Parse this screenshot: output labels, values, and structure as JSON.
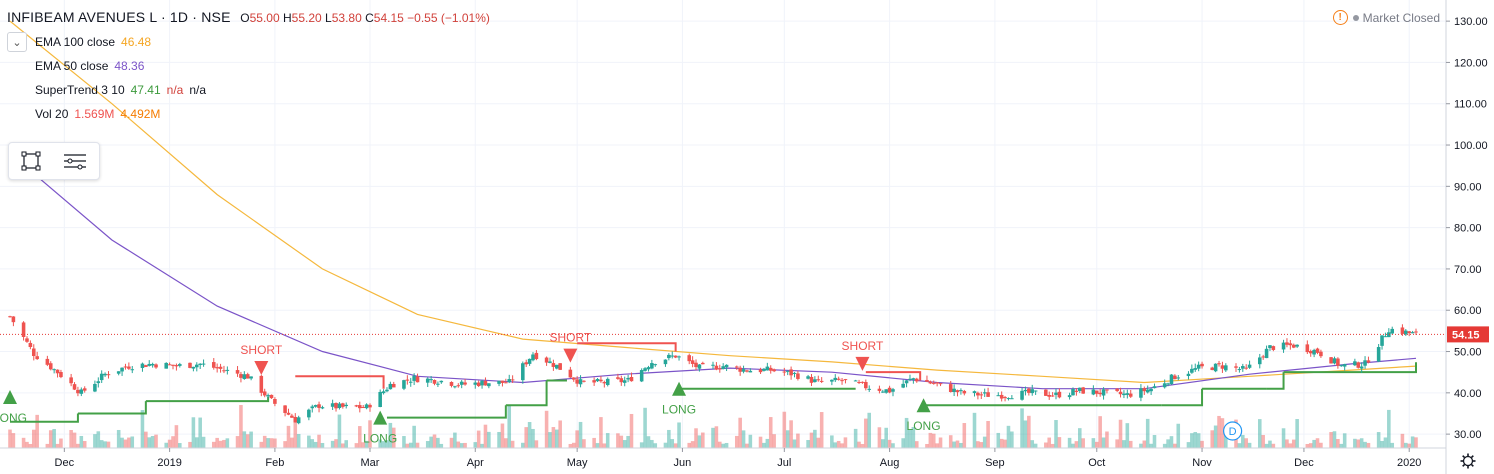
{
  "header": {
    "symbol": "INFIBEAM AVENUES L · 1D · NSE",
    "open_label": "O",
    "open": "55.00",
    "high_label": "H",
    "high": "55.20",
    "low_label": "L",
    "low": "53.80",
    "close_label": "C",
    "close": "54.15",
    "change": "−0.55 (−1.01%)"
  },
  "status": {
    "market": "Market Closed",
    "warning_icon": "warning-icon",
    "status_dot": "dot-icon"
  },
  "legend": {
    "collapse_icon": "chevron-down-icon",
    "items": [
      {
        "label": "EMA 100 close",
        "values": [
          "46.48"
        ],
        "color": "#f5b83d"
      },
      {
        "label": "EMA 50 close",
        "values": [
          "48.36"
        ],
        "color": "#7b54c8"
      },
      {
        "label": "SuperTrend 3 10",
        "values": [
          "47.41",
          "n/a"
        ],
        "extra": "n/a",
        "color": "#3c9a3c"
      },
      {
        "label": "Vol 20",
        "values": [
          "1.569M",
          "4.492M"
        ],
        "color": "#ef5350"
      }
    ]
  },
  "toolbox": {
    "rect_tool": "rectangle-tool-icon",
    "list_tool": "lines-menu-icon"
  },
  "settings_icon": "gear-icon",
  "colors": {
    "up": "#26a69a",
    "down": "#ef5350",
    "ema100": "#f5b83d",
    "ema50": "#7b54c8",
    "supertrend_up": "#43a047",
    "supertrend_down": "#ef5350",
    "price_line": "#e53935"
  },
  "chart_data": {
    "type": "candlestick",
    "title": "INFIBEAM AVENUES L · 1D · NSE",
    "y_ticks": [
      "130.00",
      "120.00",
      "110.00",
      "100.00",
      "90.00",
      "80.00",
      "70.00",
      "60.00",
      "50.00",
      "40.00",
      "30.00"
    ],
    "ylim": [
      25.5,
      134.5
    ],
    "x_ticks": [
      "Dec",
      "2019",
      "Feb",
      "Mar",
      "Apr",
      "May",
      "Jun",
      "Jul",
      "Aug",
      "Sep",
      "Oct",
      "Nov",
      "Dec",
      "2020"
    ],
    "xlim": [
      "2018-11-15",
      "2020-01-03"
    ],
    "last_price": "54.15",
    "closes": [
      {
        "date": "2018-11-15",
        "close": 58.5
      },
      {
        "date": "2018-11-22",
        "close": 49.5
      },
      {
        "date": "2018-11-29",
        "close": 45.0
      },
      {
        "date": "2018-12-06",
        "close": 40.0
      },
      {
        "date": "2018-12-13",
        "close": 44.5
      },
      {
        "date": "2018-12-20",
        "close": 46.5
      },
      {
        "date": "2018-12-27",
        "close": 47.0
      },
      {
        "date": "2019-01-03",
        "close": 46.5
      },
      {
        "date": "2019-01-10",
        "close": 47.0
      },
      {
        "date": "2019-01-17",
        "close": 45.5
      },
      {
        "date": "2019-01-24",
        "close": 44.0
      },
      {
        "date": "2019-01-31",
        "close": 38.0
      },
      {
        "date": "2019-02-07",
        "close": 33.5
      },
      {
        "date": "2019-02-14",
        "close": 37.0
      },
      {
        "date": "2019-02-21",
        "close": 36.5
      },
      {
        "date": "2019-02-28",
        "close": 36.5
      },
      {
        "date": "2019-03-07",
        "close": 42.0
      },
      {
        "date": "2019-03-14",
        "close": 43.5
      },
      {
        "date": "2019-03-21",
        "close": 43.0
      },
      {
        "date": "2019-03-28",
        "close": 42.0
      },
      {
        "date": "2019-04-04",
        "close": 42.5
      },
      {
        "date": "2019-04-11",
        "close": 42.5
      },
      {
        "date": "2019-04-18",
        "close": 49.5
      },
      {
        "date": "2019-04-25",
        "close": 46.5
      },
      {
        "date": "2019-05-02",
        "close": 42.5
      },
      {
        "date": "2019-05-09",
        "close": 42.5
      },
      {
        "date": "2019-05-16",
        "close": 43.0
      },
      {
        "date": "2019-05-23",
        "close": 47.5
      },
      {
        "date": "2019-05-30",
        "close": 49.0
      },
      {
        "date": "2019-06-06",
        "close": 46.0
      },
      {
        "date": "2019-06-13",
        "close": 46.5
      },
      {
        "date": "2019-06-20",
        "close": 45.5
      },
      {
        "date": "2019-06-27",
        "close": 45.5
      },
      {
        "date": "2019-07-04",
        "close": 44.5
      },
      {
        "date": "2019-07-11",
        "close": 42.5
      },
      {
        "date": "2019-07-18",
        "close": 43.0
      },
      {
        "date": "2019-07-25",
        "close": 41.5
      },
      {
        "date": "2019-08-01",
        "close": 40.5
      },
      {
        "date": "2019-08-08",
        "close": 43.5
      },
      {
        "date": "2019-08-15",
        "close": 42.0
      },
      {
        "date": "2019-08-22",
        "close": 40.0
      },
      {
        "date": "2019-08-29",
        "close": 39.5
      },
      {
        "date": "2019-09-05",
        "close": 39.5
      },
      {
        "date": "2019-09-12",
        "close": 40.0
      },
      {
        "date": "2019-09-19",
        "close": 39.5
      },
      {
        "date": "2019-09-26",
        "close": 40.5
      },
      {
        "date": "2019-10-03",
        "close": 40.0
      },
      {
        "date": "2019-10-10",
        "close": 39.5
      },
      {
        "date": "2019-10-17",
        "close": 41.0
      },
      {
        "date": "2019-10-24",
        "close": 44.0
      },
      {
        "date": "2019-10-31",
        "close": 46.0
      },
      {
        "date": "2019-11-07",
        "close": 46.5
      },
      {
        "date": "2019-11-14",
        "close": 45.5
      },
      {
        "date": "2019-11-21",
        "close": 51.0
      },
      {
        "date": "2019-11-28",
        "close": 51.5
      },
      {
        "date": "2019-12-05",
        "close": 50.0
      },
      {
        "date": "2019-12-12",
        "close": 46.5
      },
      {
        "date": "2019-12-19",
        "close": 47.0
      },
      {
        "date": "2019-12-26",
        "close": 55.5
      },
      {
        "date": "2020-01-03",
        "close": 54.15
      }
    ],
    "ema100": [
      {
        "date": "2018-11-15",
        "value": 130
      },
      {
        "date": "2018-12-15",
        "value": 110
      },
      {
        "date": "2019-01-15",
        "value": 88
      },
      {
        "date": "2019-02-15",
        "value": 70
      },
      {
        "date": "2019-03-15",
        "value": 59
      },
      {
        "date": "2019-04-15",
        "value": 53
      },
      {
        "date": "2019-05-15",
        "value": 51
      },
      {
        "date": "2019-06-15",
        "value": 49
      },
      {
        "date": "2019-07-15",
        "value": 47.5
      },
      {
        "date": "2019-08-15",
        "value": 45.5
      },
      {
        "date": "2019-09-15",
        "value": 44
      },
      {
        "date": "2019-10-15",
        "value": 42.5
      },
      {
        "date": "2019-11-15",
        "value": 44
      },
      {
        "date": "2019-12-15",
        "value": 45.5
      },
      {
        "date": "2020-01-03",
        "value": 46.48
      }
    ],
    "ema50": [
      {
        "date": "2018-11-15",
        "value": 98
      },
      {
        "date": "2018-12-15",
        "value": 77
      },
      {
        "date": "2019-01-15",
        "value": 61
      },
      {
        "date": "2019-02-15",
        "value": 50
      },
      {
        "date": "2019-03-15",
        "value": 44
      },
      {
        "date": "2019-04-15",
        "value": 42.5
      },
      {
        "date": "2019-05-15",
        "value": 44.5
      },
      {
        "date": "2019-06-15",
        "value": 46
      },
      {
        "date": "2019-07-15",
        "value": 45
      },
      {
        "date": "2019-08-15",
        "value": 42.5
      },
      {
        "date": "2019-09-15",
        "value": 41
      },
      {
        "date": "2019-10-15",
        "value": 41
      },
      {
        "date": "2019-11-15",
        "value": 44.5
      },
      {
        "date": "2019-12-15",
        "value": 47
      },
      {
        "date": "2020-01-03",
        "value": 48.36
      }
    ],
    "supertrend": [
      {
        "date": "2018-11-15",
        "value": 33,
        "dir": "up"
      },
      {
        "date": "2018-12-05",
        "value": 35,
        "dir": "up"
      },
      {
        "date": "2018-12-25",
        "value": 38,
        "dir": "up"
      },
      {
        "date": "2019-01-30",
        "value": 39,
        "dir": "up"
      },
      {
        "date": "2019-02-07",
        "value": 44,
        "dir": "down"
      },
      {
        "date": "2019-03-05",
        "value": 41,
        "dir": "down"
      },
      {
        "date": "2019-03-06",
        "value": 34,
        "dir": "up"
      },
      {
        "date": "2019-04-10",
        "value": 37,
        "dir": "up"
      },
      {
        "date": "2019-04-22",
        "value": 43,
        "dir": "up"
      },
      {
        "date": "2019-04-28",
        "value": 43,
        "dir": "up"
      },
      {
        "date": "2019-05-01",
        "value": 52,
        "dir": "down"
      },
      {
        "date": "2019-05-30",
        "value": 50,
        "dir": "down"
      },
      {
        "date": "2019-05-31",
        "value": 41,
        "dir": "up"
      },
      {
        "date": "2019-07-22",
        "value": 41,
        "dir": "up"
      },
      {
        "date": "2019-07-25",
        "value": 45,
        "dir": "down"
      },
      {
        "date": "2019-08-10",
        "value": 43,
        "dir": "down"
      },
      {
        "date": "2019-08-11",
        "value": 37,
        "dir": "up"
      },
      {
        "date": "2019-10-20",
        "value": 37,
        "dir": "up"
      },
      {
        "date": "2019-11-01",
        "value": 41,
        "dir": "up"
      },
      {
        "date": "2019-11-20",
        "value": 41,
        "dir": "up"
      },
      {
        "date": "2019-11-25",
        "value": 45,
        "dir": "up"
      },
      {
        "date": "2020-01-03",
        "value": 47.41,
        "dir": "up"
      }
    ],
    "signals": [
      {
        "type": "LONG",
        "date": "2018-11-15",
        "price": 39
      },
      {
        "type": "SHORT",
        "date": "2019-01-28",
        "price": 46
      },
      {
        "type": "LONG",
        "date": "2019-03-04",
        "price": 34
      },
      {
        "type": "SHORT",
        "date": "2019-04-29",
        "price": 49
      },
      {
        "type": "LONG",
        "date": "2019-05-31",
        "price": 41
      },
      {
        "type": "SHORT",
        "date": "2019-07-24",
        "price": 47
      },
      {
        "type": "LONG",
        "date": "2019-08-11",
        "price": 37
      }
    ],
    "signal_labels": {
      "long": "LONG",
      "short": "SHORT"
    },
    "dividend_marker": {
      "date": "2019-11-10",
      "label": "D"
    },
    "grid": true,
    "legend_position": "top-left"
  }
}
